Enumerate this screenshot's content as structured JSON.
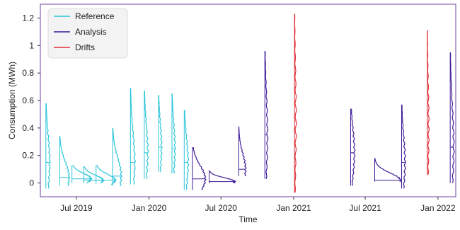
{
  "chart_data": {
    "type": "line",
    "title": "",
    "xlabel": "Time",
    "ylabel": "Consumption (MWh)",
    "x_axis": {
      "type": "date",
      "range": [
        "2019-04-01",
        "2022-02-15"
      ],
      "ticks": [
        {
          "date": "2019-07-01",
          "label": "Jul 2019"
        },
        {
          "date": "2020-01-01",
          "label": "Jan 2020"
        },
        {
          "date": "2020-07-01",
          "label": "Jul 2020"
        },
        {
          "date": "2021-01-01",
          "label": "Jan 2021"
        },
        {
          "date": "2021-07-01",
          "label": "Jul 2021"
        },
        {
          "date": "2022-01-01",
          "label": "Jan 2022"
        }
      ]
    },
    "y_axis": {
      "range": [
        -0.1,
        1.3
      ],
      "ticks": [
        {
          "value": 0,
          "label": "0"
        },
        {
          "value": 0.2,
          "label": "0.2"
        },
        {
          "value": 0.4,
          "label": "0.4"
        },
        {
          "value": 0.6,
          "label": "0.6"
        },
        {
          "value": 0.8,
          "label": "0.8"
        },
        {
          "value": 1.0,
          "label": "1"
        },
        {
          "value": 1.2,
          "label": "1.2"
        }
      ]
    },
    "grid": false,
    "legend": {
      "placement": "top-left",
      "entries": [
        {
          "label": "Reference",
          "color": "#29c4d8"
        },
        {
          "label": "Analysis",
          "color": "#3d1a96"
        },
        {
          "label": "Drifts",
          "color": "#e0303a"
        }
      ]
    },
    "frame_color": "#6c3fa3",
    "series": [
      {
        "name": "Reference",
        "color": "#29c4d8",
        "distributions": [
          {
            "date": "2019-04-15",
            "min": -0.04,
            "max": 0.58,
            "center": 0.15,
            "width": 0.9
          },
          {
            "date": "2019-05-20",
            "min": -0.02,
            "max": 0.34,
            "center": 0.04,
            "width": 2.2
          },
          {
            "date": "2019-06-20",
            "min": 0.0,
            "max": 0.13,
            "center": 0.03,
            "width": 4.5
          },
          {
            "date": "2019-07-20",
            "min": 0.0,
            "max": 0.12,
            "center": 0.02,
            "width": 4.5
          },
          {
            "date": "2019-08-20",
            "min": -0.01,
            "max": 0.13,
            "center": 0.02,
            "width": 4.5
          },
          {
            "date": "2019-10-01",
            "min": -0.02,
            "max": 0.4,
            "center": 0.05,
            "width": 2.0
          },
          {
            "date": "2019-11-15",
            "min": -0.01,
            "max": 0.69,
            "center": 0.15,
            "width": 1.0
          },
          {
            "date": "2019-12-20",
            "min": 0.03,
            "max": 0.67,
            "center": 0.22,
            "width": 0.8
          },
          {
            "date": "2020-01-25",
            "min": 0.08,
            "max": 0.64,
            "center": 0.26,
            "width": 0.7
          },
          {
            "date": "2020-02-28",
            "min": 0.07,
            "max": 0.65,
            "center": 0.25,
            "width": 0.7
          },
          {
            "date": "2020-03-30",
            "min": -0.05,
            "max": 0.53,
            "center": 0.15,
            "width": 0.9
          }
        ]
      },
      {
        "name": "Analysis",
        "color": "#3d1a96",
        "distributions": [
          {
            "date": "2020-04-20",
            "min": -0.05,
            "max": 0.26,
            "center": 0.03,
            "width": 3.0
          },
          {
            "date": "2020-06-01",
            "min": 0.0,
            "max": 0.09,
            "center": 0.01,
            "width": 6.0
          },
          {
            "date": "2020-08-15",
            "min": 0.05,
            "max": 0.41,
            "center": 0.1,
            "width": 1.6
          },
          {
            "date": "2020-10-20",
            "min": 0.03,
            "max": 0.96,
            "center": 0.35,
            "width": 0.6
          },
          {
            "date": "2021-05-25",
            "min": -0.02,
            "max": 0.54,
            "center": 0.22,
            "width": 0.9
          },
          {
            "date": "2021-07-25",
            "min": 0.01,
            "max": 0.18,
            "center": 0.02,
            "width": 6.0
          },
          {
            "date": "2021-10-01",
            "min": -0.04,
            "max": 0.57,
            "center": 0.15,
            "width": 0.8
          },
          {
            "date": "2022-02-01",
            "min": 0.0,
            "max": 0.95,
            "center": 0.26,
            "width": 0.8
          }
        ]
      },
      {
        "name": "Drifts",
        "color": "#e0303a",
        "distributions": [
          {
            "date": "2021-01-03",
            "min": -0.07,
            "max": 1.23,
            "center": 0.45,
            "width": 0.3
          },
          {
            "date": "2021-12-05",
            "min": 0.06,
            "max": 1.11,
            "center": 0.4,
            "width": 0.3
          }
        ]
      }
    ]
  }
}
